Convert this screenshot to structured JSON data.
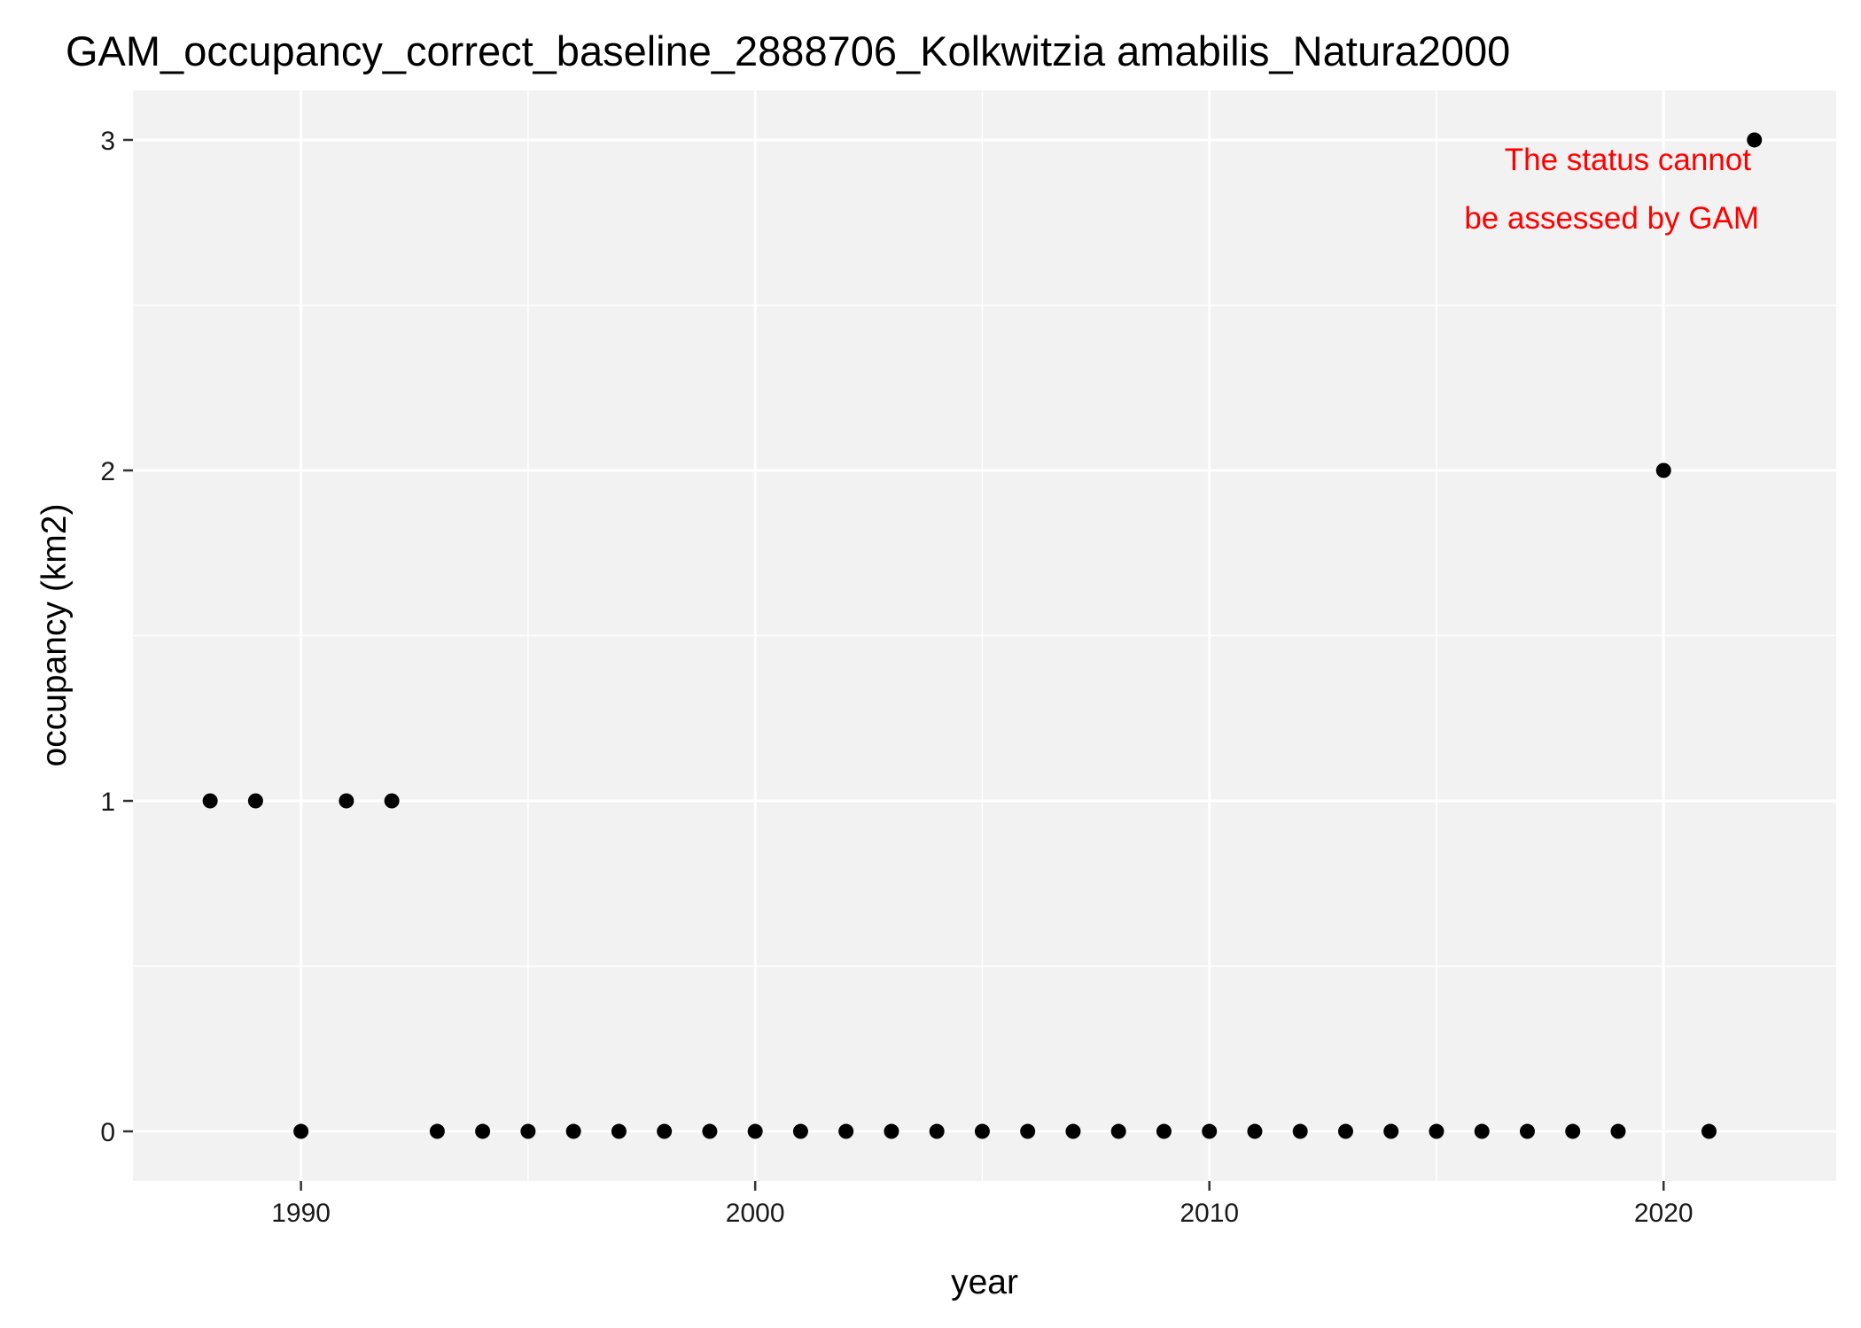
{
  "chart_data": {
    "type": "scatter",
    "title": "GAM_occupancy_correct_baseline_2888706_Kolkwitzia amabilis_Natura2000",
    "xlabel": "year",
    "ylabel": "occupancy (km2)",
    "xlim": [
      1986.3,
      2023.8
    ],
    "ylim": [
      -0.15,
      3.15
    ],
    "x_ticks": [
      1990,
      2000,
      2010,
      2020
    ],
    "x_tick_labels": [
      "1990",
      "2000",
      "2010",
      "2020"
    ],
    "x_minor_ticks": [
      1995,
      2005,
      2015
    ],
    "y_ticks": [
      0,
      1,
      2,
      3
    ],
    "y_tick_labels": [
      "0",
      "1",
      "2",
      "3"
    ],
    "y_minor_ticks": [
      0.5,
      1.5,
      2.5
    ],
    "grid": true,
    "panel_background": "#f2f2f2",
    "grid_color": "#ffffff",
    "point_color": "#000000",
    "annotation": {
      "lines": [
        "The status cannot",
        "be assessed by GAM"
      ],
      "color": "#ff0000",
      "position": "top-right"
    },
    "x": [
      1988,
      1989,
      1990,
      1991,
      1992,
      1993,
      1994,
      1995,
      1996,
      1997,
      1998,
      1999,
      2000,
      2001,
      2002,
      2003,
      2004,
      2005,
      2006,
      2007,
      2008,
      2009,
      2010,
      2011,
      2012,
      2013,
      2014,
      2015,
      2016,
      2017,
      2018,
      2019,
      2020,
      2021,
      2022
    ],
    "y": [
      1,
      1,
      0,
      1,
      1,
      0,
      0,
      0,
      0,
      0,
      0,
      0,
      0,
      0,
      0,
      0,
      0,
      0,
      0,
      0,
      0,
      0,
      0,
      0,
      0,
      0,
      0,
      0,
      0,
      0,
      0,
      0,
      2,
      0,
      3
    ]
  }
}
